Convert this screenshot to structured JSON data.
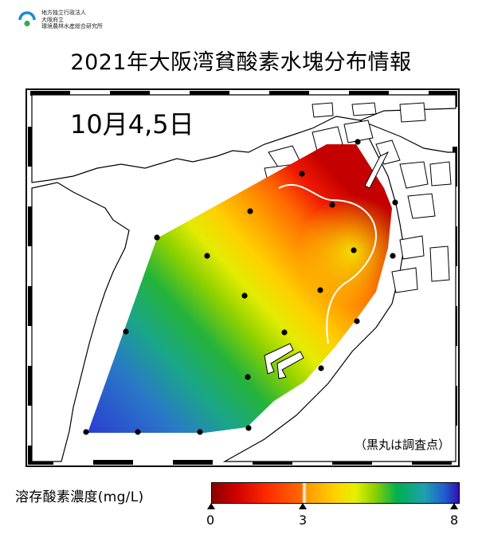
{
  "header": {
    "org_lines": [
      "地方独立行政法人",
      "大阪府立",
      "環境農林水産総合研究所"
    ],
    "title": "2021年大阪湾貧酸素水塊分布情報"
  },
  "map": {
    "date_label": "10月4,5日",
    "note_label": "（黒丸は調査点）"
  },
  "legend": {
    "title": "溶存酸素濃度(mg/L)",
    "ticks": [
      {
        "label": "0",
        "value": 0
      },
      {
        "label": "3",
        "value": 3
      },
      {
        "label": "8",
        "value": 8
      }
    ],
    "min": 0,
    "max": 8,
    "colors": {
      "low": "#8b0000",
      "mid": "#ffd200",
      "high": "#3010b0",
      "station": "#000000"
    }
  }
}
